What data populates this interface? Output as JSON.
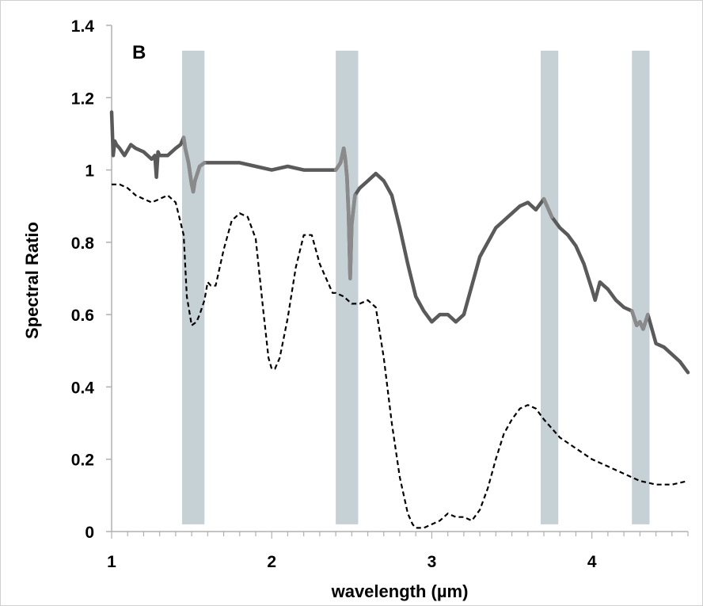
{
  "chart_data": {
    "type": "line",
    "panel_label": "B",
    "xlabel": "wavelength (µm)",
    "ylabel": "Spectral Ratio",
    "xlim": [
      1,
      4.6
    ],
    "ylim": [
      0,
      1.4
    ],
    "x_ticks": [
      "1",
      "2",
      "3",
      "4"
    ],
    "y_ticks": [
      "0",
      "0.2",
      "0.4",
      "0.6",
      "0.8",
      "1",
      "1.2",
      "1.4"
    ],
    "grid": false,
    "shaded_bands": [
      {
        "x0": 1.44,
        "x1": 1.58,
        "y0": 0.02,
        "y1": 1.33
      },
      {
        "x0": 2.4,
        "x1": 2.54,
        "y0": 0.02,
        "y1": 1.33
      },
      {
        "x0": 3.68,
        "x1": 3.79,
        "y0": 0.02,
        "y1": 1.33
      },
      {
        "x0": 4.25,
        "x1": 4.36,
        "y0": 0.02,
        "y1": 1.33
      }
    ],
    "colors": {
      "solid_line": "#5a5a5a",
      "solid_line_in_band": "#8a8a8a",
      "dashed_line": "#000000",
      "band": "#c5d1d4",
      "axis": "#b0b0b0",
      "text": "#000000"
    },
    "series": [
      {
        "style": "solid",
        "x": [
          1.0,
          1.01,
          1.02,
          1.03,
          1.05,
          1.08,
          1.12,
          1.15,
          1.2,
          1.25,
          1.27,
          1.28,
          1.29,
          1.3,
          1.35,
          1.4,
          1.43,
          1.45,
          1.46,
          1.48,
          1.5,
          1.51,
          1.52,
          1.55,
          1.58,
          1.62,
          1.7,
          1.8,
          1.9,
          2.0,
          2.1,
          2.2,
          2.3,
          2.4,
          2.43,
          2.45,
          2.46,
          2.47,
          2.48,
          2.49,
          2.5,
          2.52,
          2.55,
          2.6,
          2.65,
          2.7,
          2.75,
          2.8,
          2.85,
          2.9,
          2.95,
          3.0,
          3.05,
          3.1,
          3.15,
          3.2,
          3.25,
          3.3,
          3.35,
          3.4,
          3.45,
          3.5,
          3.55,
          3.6,
          3.65,
          3.7,
          3.72,
          3.75,
          3.8,
          3.85,
          3.9,
          3.95,
          4.0,
          4.02,
          4.05,
          4.1,
          4.15,
          4.2,
          4.25,
          4.28,
          4.3,
          4.32,
          4.35,
          4.4,
          4.45,
          4.5,
          4.55,
          4.6
        ],
        "y": [
          1.16,
          1.04,
          1.08,
          1.07,
          1.06,
          1.04,
          1.07,
          1.06,
          1.05,
          1.03,
          1.04,
          0.98,
          1.05,
          1.04,
          1.04,
          1.06,
          1.07,
          1.09,
          1.06,
          1.02,
          0.96,
          0.94,
          0.97,
          1.01,
          1.02,
          1.02,
          1.02,
          1.02,
          1.01,
          1.0,
          1.01,
          1.0,
          1.0,
          1.0,
          1.02,
          1.06,
          1.03,
          0.98,
          0.88,
          0.7,
          0.85,
          0.93,
          0.95,
          0.97,
          0.99,
          0.97,
          0.93,
          0.84,
          0.74,
          0.65,
          0.61,
          0.58,
          0.6,
          0.6,
          0.58,
          0.6,
          0.68,
          0.76,
          0.8,
          0.84,
          0.86,
          0.88,
          0.9,
          0.91,
          0.89,
          0.92,
          0.9,
          0.87,
          0.84,
          0.82,
          0.79,
          0.74,
          0.67,
          0.64,
          0.69,
          0.67,
          0.64,
          0.62,
          0.61,
          0.57,
          0.58,
          0.56,
          0.6,
          0.52,
          0.51,
          0.49,
          0.47,
          0.44
        ]
      },
      {
        "style": "dashed",
        "x": [
          1.0,
          1.05,
          1.1,
          1.15,
          1.2,
          1.25,
          1.3,
          1.35,
          1.4,
          1.45,
          1.47,
          1.5,
          1.53,
          1.55,
          1.58,
          1.6,
          1.62,
          1.65,
          1.7,
          1.75,
          1.8,
          1.85,
          1.9,
          1.95,
          1.98,
          2.0,
          2.02,
          2.05,
          2.1,
          2.15,
          2.2,
          2.25,
          2.3,
          2.35,
          2.38,
          2.4,
          2.45,
          2.5,
          2.55,
          2.6,
          2.65,
          2.7,
          2.75,
          2.8,
          2.85,
          2.88,
          2.9,
          2.95,
          3.0,
          3.05,
          3.1,
          3.15,
          3.2,
          3.25,
          3.3,
          3.35,
          3.4,
          3.45,
          3.5,
          3.55,
          3.6,
          3.65,
          3.7,
          3.8,
          3.9,
          4.0,
          4.1,
          4.2,
          4.3,
          4.4,
          4.5,
          4.6
        ],
        "y": [
          0.96,
          0.96,
          0.95,
          0.93,
          0.92,
          0.91,
          0.92,
          0.93,
          0.91,
          0.82,
          0.65,
          0.57,
          0.58,
          0.6,
          0.64,
          0.69,
          0.68,
          0.68,
          0.78,
          0.86,
          0.88,
          0.87,
          0.81,
          0.6,
          0.48,
          0.45,
          0.45,
          0.48,
          0.59,
          0.73,
          0.82,
          0.82,
          0.74,
          0.69,
          0.66,
          0.66,
          0.65,
          0.63,
          0.63,
          0.64,
          0.62,
          0.48,
          0.3,
          0.15,
          0.05,
          0.02,
          0.01,
          0.01,
          0.02,
          0.03,
          0.05,
          0.04,
          0.04,
          0.03,
          0.06,
          0.12,
          0.2,
          0.27,
          0.31,
          0.34,
          0.35,
          0.34,
          0.31,
          0.26,
          0.23,
          0.2,
          0.18,
          0.16,
          0.14,
          0.13,
          0.13,
          0.14
        ]
      }
    ]
  }
}
